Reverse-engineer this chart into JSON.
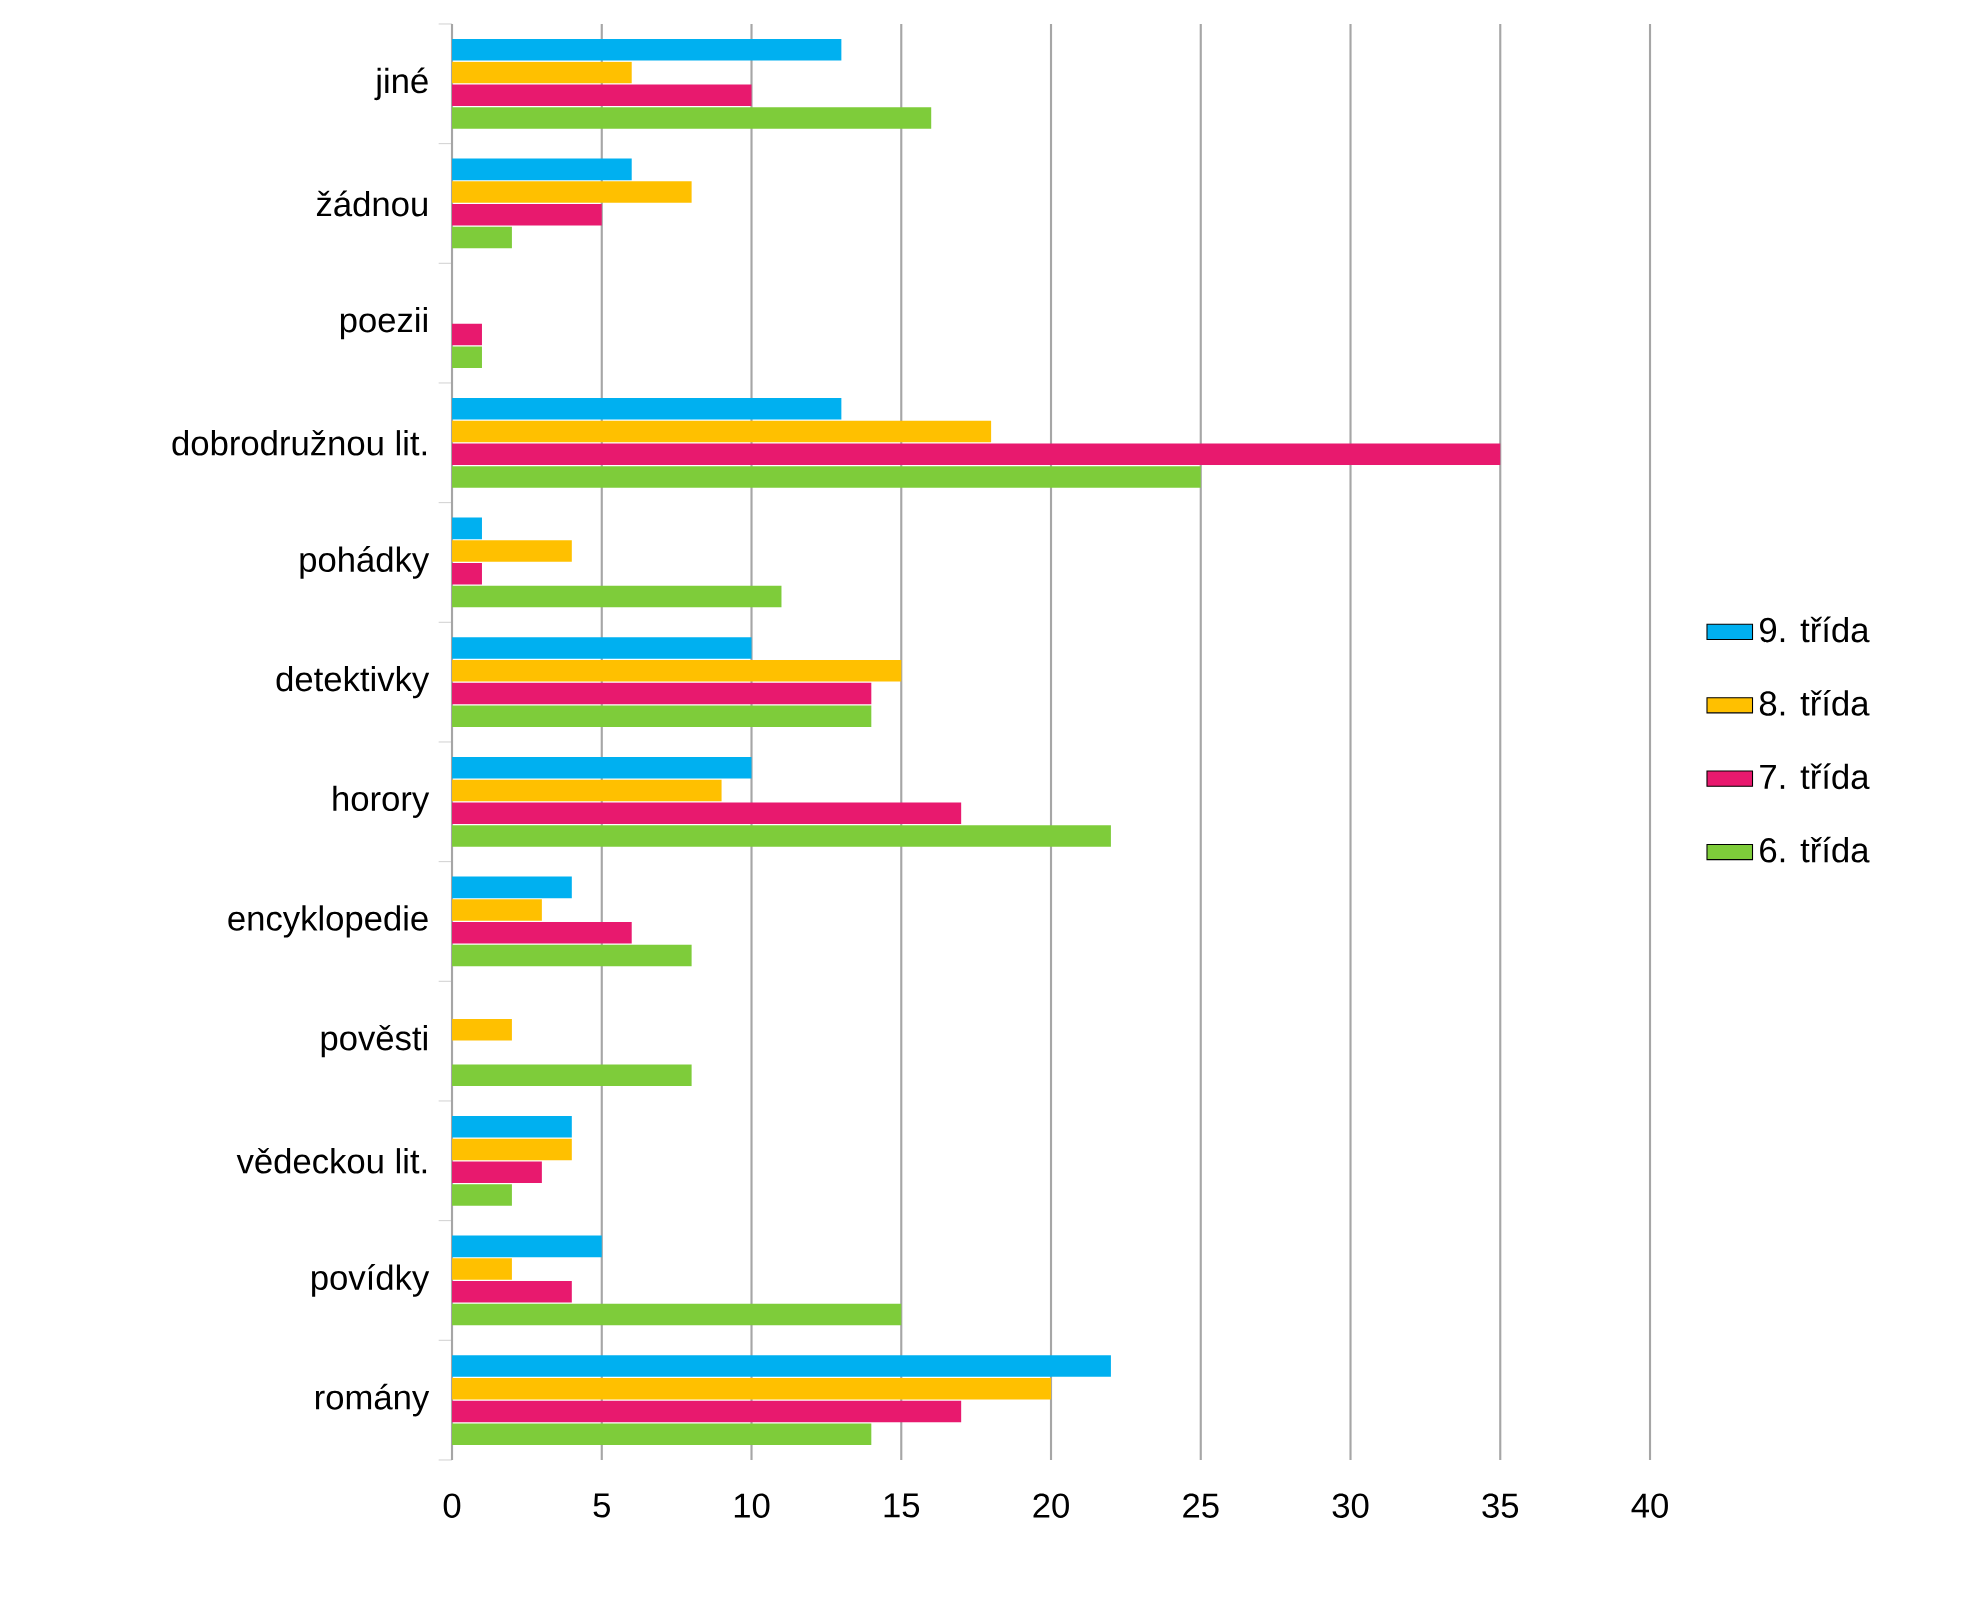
{
  "chart_data": {
    "type": "bar",
    "orientation": "horizontal",
    "categories": [
      "jiné",
      "žádnou",
      "poezii",
      "dobrodružnou lit.",
      "pohádky",
      "detektivky",
      "horory",
      "encyklopedie",
      "pověsti",
      "vědeckou lit.",
      "povídky",
      "romány"
    ],
    "series": [
      {
        "name": "9. třída",
        "color": "#00b0f0",
        "values": [
          13,
          6,
          0,
          13,
          1,
          10,
          10,
          4,
          0,
          4,
          5,
          22
        ]
      },
      {
        "name": "8. třída",
        "color": "#ffc000",
        "values": [
          6,
          8,
          0,
          18,
          4,
          15,
          9,
          3,
          2,
          4,
          2,
          20
        ]
      },
      {
        "name": "7. třída",
        "color": "#e8196e",
        "values": [
          10,
          5,
          1,
          35,
          1,
          14,
          17,
          6,
          0,
          3,
          4,
          17
        ]
      },
      {
        "name": "6. třída",
        "color": "#7ecc3a",
        "values": [
          16,
          2,
          1,
          25,
          11,
          14,
          22,
          8,
          8,
          2,
          15,
          14
        ]
      }
    ],
    "xlim": [
      0,
      40
    ],
    "xticks": [
      0,
      5,
      10,
      15,
      20,
      25,
      30,
      35,
      40
    ],
    "grid": "x",
    "legend": "right"
  }
}
